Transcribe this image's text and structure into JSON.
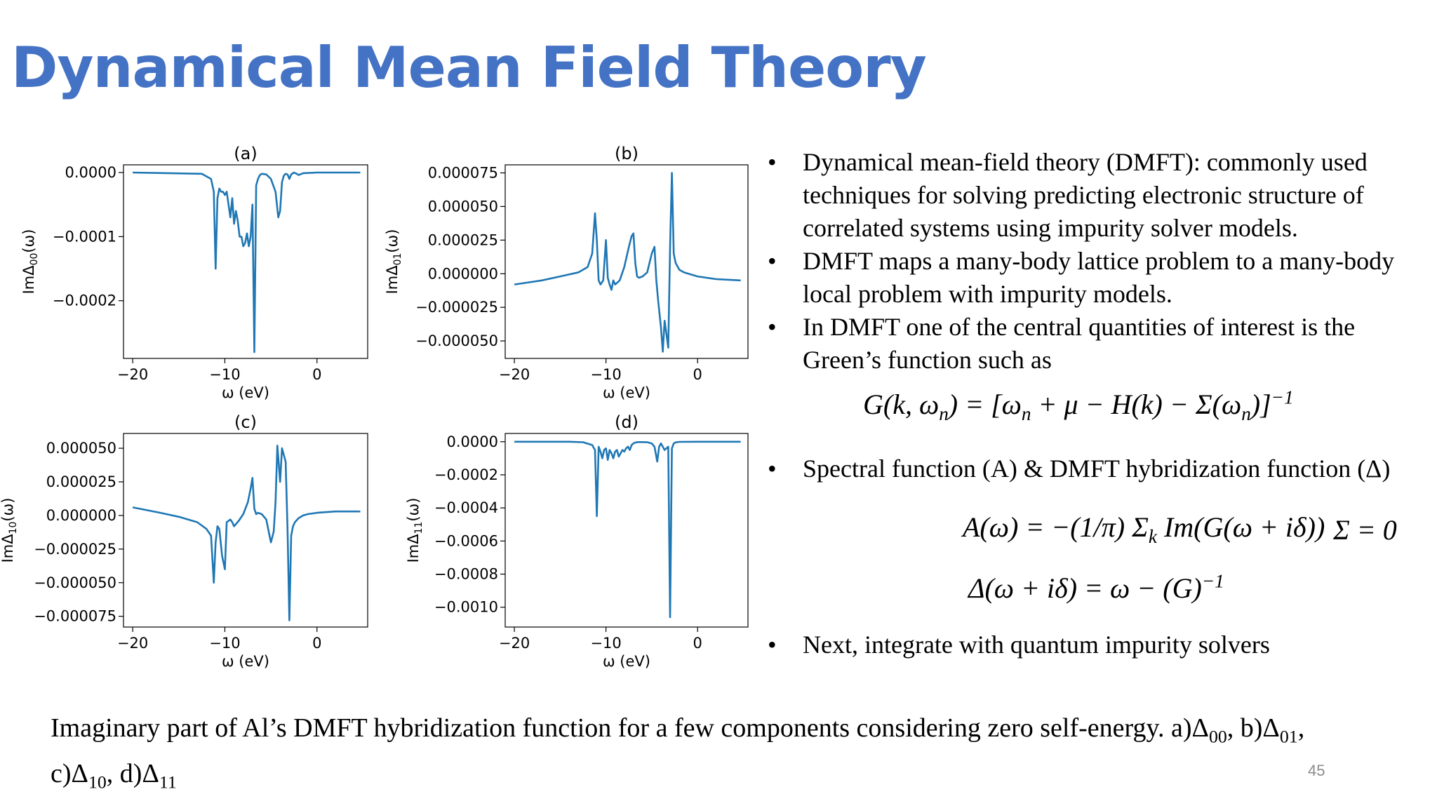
{
  "slide": {
    "title": "Dynamical Mean Field Theory",
    "page_number": "45",
    "caption_line1": "Imaginary part of Al’s DMFT hybridization function for a few components considering zero self-energy. a)Δ",
    "caption_line2": "c)Δ"
  },
  "bullets": [
    "Dynamical mean-field theory (DMFT): commonly used techniques for solving predicting electronic structure of correlated systems using impurity solver models.",
    "DMFT maps a many-body lattice problem to a many-body local problem with impurity models.",
    "In DMFT one of the central quantities of interest is the Green’s function such as",
    "Spectral function (A) & DMFT hybridization function (Δ)",
    "Next, integrate with quantum impurity solvers"
  ],
  "equations": {
    "green": "G(k, ω_n) = [ω_n + μ − H(k) − Σ(ω_n)]^−1",
    "spectral": "A(ω) = −(1/π) Σ_k Im(G(ω + iδ))",
    "sigma_zero": "Σ = 0",
    "hybridization": "Δ(ω + iδ) = ω − (G)^−1"
  },
  "colors": {
    "title": "#4472c4",
    "line": "#1f77b4",
    "page_number": "#8c8c8c"
  },
  "chart_data": [
    {
      "type": "line",
      "title": "(a)",
      "xlabel": "ω (eV)",
      "ylabel": "ImΔ00(ω)",
      "xlim": [
        -21,
        5.5
      ],
      "ylim": [
        -0.00029,
        1.2e-05
      ],
      "xticks": [
        -20,
        -10,
        0
      ],
      "xtick_labels": [
        "−20",
        "−10",
        "0"
      ],
      "yticks": [
        0,
        -0.0001,
        -0.0002
      ],
      "ytick_labels": [
        "0.0000",
        "−0.0001",
        "−0.0002"
      ],
      "series": [
        {
          "x": [
            -20,
            -12.5,
            -11.5,
            -11.2,
            -11.0,
            -10.8,
            -10.6,
            -10.4,
            -10.2,
            -10.0,
            -9.8,
            -9.6,
            -9.4,
            -9.2,
            -9.0,
            -8.8,
            -8.6,
            -8.4,
            -8.2,
            -8.0,
            -7.8,
            -7.6,
            -7.4,
            -7.2,
            -7.0,
            -6.8,
            -6.6,
            -6.4,
            -6.2,
            -6.0,
            -5.5,
            -5.0,
            -4.5,
            -4.2,
            -4.0,
            -3.8,
            -3.6,
            -3.4,
            -3.2,
            -3.0,
            -2.8,
            -2.5,
            -2.2,
            -2.0,
            -1.5,
            0,
            2,
            4.7
          ],
          "y": [
            0,
            -2e-06,
            -1e-05,
            -3e-05,
            -0.00015,
            -4e-05,
            -2.5e-05,
            -3e-05,
            -3e-05,
            -3.5e-05,
            -3e-05,
            -5e-05,
            -7e-05,
            -4e-05,
            -8e-05,
            -6e-05,
            -7.5e-05,
            -0.0001,
            -0.0001,
            -0.000115,
            -0.00011,
            -9.5e-05,
            -0.000115,
            -0.0001,
            -5e-05,
            -0.00028,
            -2e-05,
            -1e-05,
            -4e-06,
            -2e-06,
            -3e-06,
            -1e-05,
            -3e-05,
            -7e-05,
            -6e-05,
            -1.5e-05,
            -5e-06,
            -2e-06,
            -3e-06,
            -1e-05,
            -3e-06,
            0,
            -2e-06,
            -4e-06,
            -1e-06,
            0,
            0,
            0
          ]
        }
      ]
    },
    {
      "type": "line",
      "title": "(b)",
      "xlabel": "ω (eV)",
      "ylabel": "ImΔ01(ω)",
      "xlim": [
        -21,
        5.5
      ],
      "ylim": [
        -6.3e-05,
        8.1e-05
      ],
      "xticks": [
        -20,
        -10,
        0
      ],
      "xtick_labels": [
        "−20",
        "−10",
        "0"
      ],
      "yticks": [
        7.5e-05,
        5e-05,
        2.5e-05,
        0,
        -2.5e-05,
        -5e-05
      ],
      "ytick_labels": [
        "0.000075",
        "0.000050",
        "0.000025",
        "0.000000",
        "−0.000025",
        "−0.000050"
      ],
      "series": [
        {
          "x": [
            -20,
            -17,
            -15,
            -13,
            -12,
            -11.5,
            -11.2,
            -11.0,
            -10.8,
            -10.6,
            -10.3,
            -10.0,
            -9.8,
            -9.6,
            -9.4,
            -9.2,
            -9.0,
            -8.5,
            -8.0,
            -7.5,
            -7.2,
            -7.0,
            -6.8,
            -6.6,
            -6.4,
            -6.0,
            -5.5,
            -5.0,
            -4.7,
            -4.5,
            -4.3,
            -4.0,
            -3.8,
            -3.6,
            -3.4,
            -3.2,
            -3.0,
            -2.8,
            -2.6,
            -2.4,
            -2.0,
            -1.5,
            -1,
            0,
            2,
            4.7
          ],
          "y": [
            -8e-06,
            -5e-06,
            -2e-06,
            1e-06,
            5e-06,
            1.5e-05,
            4.5e-05,
            2.5e-05,
            -5e-06,
            -8e-06,
            -5e-06,
            2.5e-05,
            -3e-06,
            -8e-06,
            -1.2e-05,
            -5e-06,
            -8e-06,
            -5e-06,
            5e-06,
            2e-05,
            2.8e-05,
            3e-05,
            8e-06,
            -2e-06,
            -3e-06,
            -2e-06,
            1e-06,
            1.5e-05,
            2e-05,
            -5e-06,
            -2e-05,
            -4e-05,
            -5.8e-05,
            -3.5e-05,
            -4.5e-05,
            -5.5e-05,
            2e-05,
            7.5e-05,
            1.5e-05,
            8e-06,
            3e-06,
            1e-06,
            0,
            -2e-06,
            -4e-06,
            -5e-06
          ]
        }
      ]
    },
    {
      "type": "line",
      "title": "(c)",
      "xlabel": "ω (eV)",
      "ylabel": "ImΔ10(ω)",
      "xlim": [
        -21,
        5.5
      ],
      "ylim": [
        -8.3e-05,
        6.1e-05
      ],
      "xticks": [
        -20,
        -10,
        0
      ],
      "xtick_labels": [
        "−20",
        "−10",
        "0"
      ],
      "yticks": [
        5e-05,
        2.5e-05,
        0,
        -2.5e-05,
        -5e-05,
        -7.5e-05
      ],
      "ytick_labels": [
        "0.000050",
        "0.000025",
        "0.000000",
        "−0.000025",
        "−0.000050",
        "−0.000075"
      ],
      "series": [
        {
          "x": [
            -20,
            -17,
            -15,
            -13,
            -12,
            -11.5,
            -11.2,
            -11.0,
            -10.8,
            -10.6,
            -10.3,
            -10.0,
            -9.8,
            -9.6,
            -9.4,
            -9.2,
            -9.0,
            -8.5,
            -8.0,
            -7.5,
            -7.2,
            -7.0,
            -6.8,
            -6.6,
            -6.4,
            -6.0,
            -5.5,
            -5.0,
            -4.7,
            -4.5,
            -4.3,
            -4.0,
            -3.8,
            -3.6,
            -3.4,
            -3.2,
            -3.0,
            -2.8,
            -2.6,
            -2.4,
            -2.0,
            -1.5,
            -1,
            0,
            2,
            4.7
          ],
          "y": [
            6e-06,
            2e-06,
            -1e-06,
            -5e-06,
            -1e-05,
            -1.5e-05,
            -5e-05,
            -2e-05,
            -8e-06,
            -1e-05,
            -3e-05,
            -4e-05,
            -5e-06,
            -4e-06,
            -3e-06,
            -5e-06,
            -8e-06,
            -4e-06,
            1e-06,
            1e-05,
            2e-05,
            2.8e-05,
            5e-06,
            1e-06,
            2e-06,
            1e-06,
            -3e-06,
            -2e-05,
            -1.2e-05,
            1e-05,
            5.2e-05,
            2.5e-05,
            5e-05,
            4.5e-05,
            4e-05,
            -1e-05,
            -7.8e-05,
            -1.5e-05,
            -8e-06,
            -5e-06,
            -2e-06,
            0,
            1e-06,
            2e-06,
            3e-06,
            3e-06
          ]
        }
      ]
    },
    {
      "type": "line",
      "title": "(d)",
      "xlabel": "ω (eV)",
      "ylabel": "ImΔ11(ω)",
      "xlim": [
        -21,
        5.5
      ],
      "ylim": [
        -0.00112,
        5e-05
      ],
      "xticks": [
        -20,
        -10,
        0
      ],
      "xtick_labels": [
        "−20",
        "−10",
        "0"
      ],
      "yticks": [
        0,
        -0.0002,
        -0.0004,
        -0.0006,
        -0.0008,
        -0.001
      ],
      "ytick_labels": [
        "0.0000",
        "−0.0002",
        "−0.0004",
        "−0.0006",
        "−0.0008",
        "−0.0010"
      ],
      "series": [
        {
          "x": [
            -20,
            -14,
            -12.5,
            -11.5,
            -11.2,
            -11.0,
            -10.8,
            -10.6,
            -10.4,
            -10.2,
            -10.0,
            -9.8,
            -9.6,
            -9.4,
            -9.2,
            -9.0,
            -8.8,
            -8.6,
            -8.4,
            -8.2,
            -8.0,
            -7.8,
            -7.6,
            -7.4,
            -7.2,
            -7.0,
            -6.8,
            -6.5,
            -6.0,
            -5.5,
            -5.0,
            -4.7,
            -4.4,
            -4.2,
            -4.0,
            -3.8,
            -3.6,
            -3.4,
            -3.2,
            -3.0,
            -2.8,
            -2.6,
            -2.4,
            -2.0,
            0,
            4.7
          ],
          "y": [
            0,
            0,
            -3e-06,
            -2e-05,
            -5e-05,
            -0.00045,
            -3e-05,
            -6e-05,
            -0.0001,
            -5e-05,
            -4e-05,
            -0.00011,
            -5e-05,
            -7e-05,
            -0.0001,
            -6e-05,
            -5e-05,
            -9e-05,
            -7e-05,
            -5e-05,
            -6e-05,
            -4e-05,
            -3e-05,
            -5e-05,
            -2e-05,
            -1e-05,
            -5e-06,
            -2e-06,
            -2e-06,
            -3e-06,
            -1e-05,
            -3e-05,
            -0.00012,
            -3e-05,
            -1e-05,
            -3e-05,
            -5e-05,
            -4e-05,
            -3e-05,
            -0.00106,
            -4e-05,
            -1e-05,
            -4e-06,
            -1e-06,
            0,
            0
          ]
        }
      ]
    }
  ]
}
